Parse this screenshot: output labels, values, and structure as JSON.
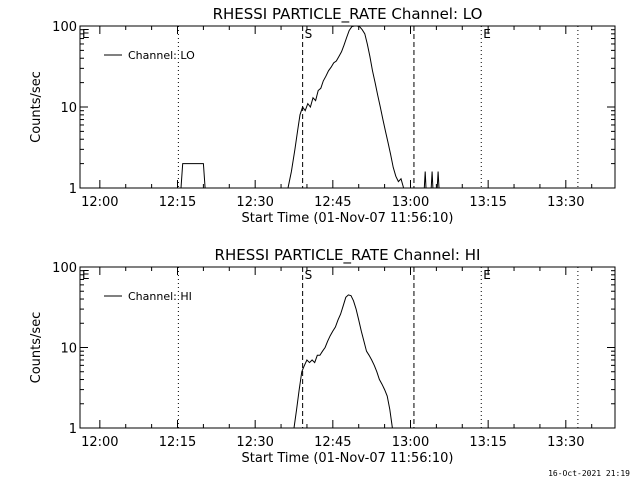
{
  "chart_data": [
    {
      "type": "line",
      "title": "RHESSI PARTICLE_RATE Channel: LO",
      "xlabel": "Start Time (01-Nov-07 11:56:10)",
      "ylabel": "Counts/sec",
      "y_scale": "log",
      "ylim": [
        1,
        100
      ],
      "y_ticks": [
        1,
        10,
        100
      ],
      "y_tick_labels": [
        "1",
        "10",
        "100"
      ],
      "xlim": [
        "11:56:10",
        "13:39:30"
      ],
      "x_ticks": [
        "12:00",
        "12:15",
        "12:30",
        "12:45",
        "13:00",
        "13:15",
        "13:30"
      ],
      "legend": {
        "label": "Channel: LO",
        "position": "top-left"
      },
      "markers": [
        {
          "label": "E",
          "x": "11:56:10",
          "style": "dotted"
        },
        {
          "label": "",
          "x": "12:15:10",
          "style": "dotted"
        },
        {
          "label": "S",
          "x": "12:39:10",
          "style": "dashed"
        },
        {
          "label": "",
          "x": "13:00:40",
          "style": "dashed"
        },
        {
          "label": "E",
          "x": "13:13:40",
          "style": "dotted"
        },
        {
          "label": "",
          "x": "13:32:20",
          "style": "dotted"
        }
      ],
      "series": [
        {
          "name": "Channel: LO",
          "segments": [
            {
              "x": [
                "12:15:40",
                "12:16:00",
                "12:20:00",
                "12:20:20"
              ],
              "y": [
                1,
                2,
                2,
                1
              ]
            },
            {
              "x": [
                "12:36:20",
                "12:37:00",
                "12:37:40",
                "12:38:10",
                "12:38:40",
                "12:39:10",
                "12:39:40",
                "12:40:10",
                "12:40:40",
                "12:41:10",
                "12:41:40",
                "12:42:10",
                "12:42:40",
                "12:43:10",
                "12:43:40",
                "12:44:10",
                "12:44:40",
                "12:45:10",
                "12:45:40",
                "12:46:10",
                "12:46:40",
                "12:47:10",
                "12:47:40",
                "12:48:10",
                "12:48:40",
                "12:49:10",
                "12:49:40",
                "12:50:10",
                "12:50:40",
                "12:51:10",
                "12:51:40",
                "12:52:10",
                "12:52:40",
                "12:53:10",
                "12:53:40",
                "12:54:10",
                "12:54:40",
                "12:55:10",
                "12:55:40",
                "12:56:10",
                "12:56:40",
                "12:57:10",
                "12:57:40",
                "12:58:10",
                "12:58:40"
              ],
              "y": [
                1,
                1.6,
                3,
                5,
                8,
                10,
                9,
                11,
                10,
                13,
                12,
                16,
                17,
                21,
                24,
                28,
                31,
                35,
                37,
                42,
                48,
                58,
                72,
                88,
                98,
                100,
                100,
                98,
                90,
                80,
                60,
                42,
                28,
                20,
                14,
                10,
                7,
                5,
                3.6,
                2.6,
                1.8,
                1.4,
                1.2,
                1.3,
                1
              ]
            },
            {
              "x": [
                "13:02:40",
                "13:02:50",
                "13:03:00"
              ],
              "y": [
                1,
                1.6,
                1
              ]
            },
            {
              "x": [
                "13:04:00",
                "13:04:10",
                "13:04:20"
              ],
              "y": [
                1,
                1.6,
                1
              ]
            },
            {
              "x": [
                "13:05:10",
                "13:05:20",
                "13:05:30"
              ],
              "y": [
                1,
                1.6,
                1
              ]
            }
          ]
        }
      ]
    },
    {
      "type": "line",
      "title": "RHESSI PARTICLE_RATE Channel: HI",
      "xlabel": "Start Time (01-Nov-07 11:56:10)",
      "ylabel": "Counts/sec",
      "y_scale": "log",
      "ylim": [
        1,
        100
      ],
      "y_ticks": [
        1,
        10,
        100
      ],
      "y_tick_labels": [
        "1",
        "10",
        "100"
      ],
      "xlim": [
        "11:56:10",
        "13:39:30"
      ],
      "x_ticks": [
        "12:00",
        "12:15",
        "12:30",
        "12:45",
        "13:00",
        "13:15",
        "13:30"
      ],
      "legend": {
        "label": "Channel: HI",
        "position": "top-left"
      },
      "markers": [
        {
          "label": "E",
          "x": "11:56:10",
          "style": "dotted"
        },
        {
          "label": "",
          "x": "12:15:10",
          "style": "dotted"
        },
        {
          "label": "S",
          "x": "12:39:10",
          "style": "dashed"
        },
        {
          "label": "",
          "x": "13:00:40",
          "style": "dashed"
        },
        {
          "label": "E",
          "x": "13:13:40",
          "style": "dotted"
        },
        {
          "label": "",
          "x": "13:32:20",
          "style": "dotted"
        }
      ],
      "series": [
        {
          "name": "Channel: HI",
          "segments": [
            {
              "x": [
                "12:37:30",
                "12:38:00",
                "12:38:30",
                "12:39:00",
                "12:39:30",
                "12:40:00",
                "12:40:30",
                "12:41:00",
                "12:41:30",
                "12:42:00",
                "12:42:30",
                "12:43:00",
                "12:43:30",
                "12:44:00",
                "12:44:30",
                "12:45:00",
                "12:45:30",
                "12:46:00",
                "12:46:30",
                "12:47:00",
                "12:47:30",
                "12:48:00",
                "12:48:30",
                "12:49:00",
                "12:49:30",
                "12:50:00",
                "12:50:30",
                "12:51:00",
                "12:51:30",
                "12:52:00",
                "12:52:30",
                "12:53:00",
                "12:53:30",
                "12:54:00",
                "12:54:30",
                "12:55:00",
                "12:55:30",
                "12:56:00",
                "12:56:30"
              ],
              "y": [
                1,
                1.7,
                3,
                5,
                6,
                7,
                6.5,
                7,
                6.5,
                8,
                8,
                9,
                10,
                12,
                14,
                16,
                18,
                22,
                26,
                33,
                42,
                45,
                44,
                38,
                30,
                22,
                16,
                12,
                9,
                8,
                7,
                6,
                5,
                4,
                3.5,
                3,
                2.5,
                1.7,
                1
              ]
            }
          ]
        }
      ]
    }
  ],
  "footer": {
    "timestamp": "16-Oct-2021 21:19"
  }
}
